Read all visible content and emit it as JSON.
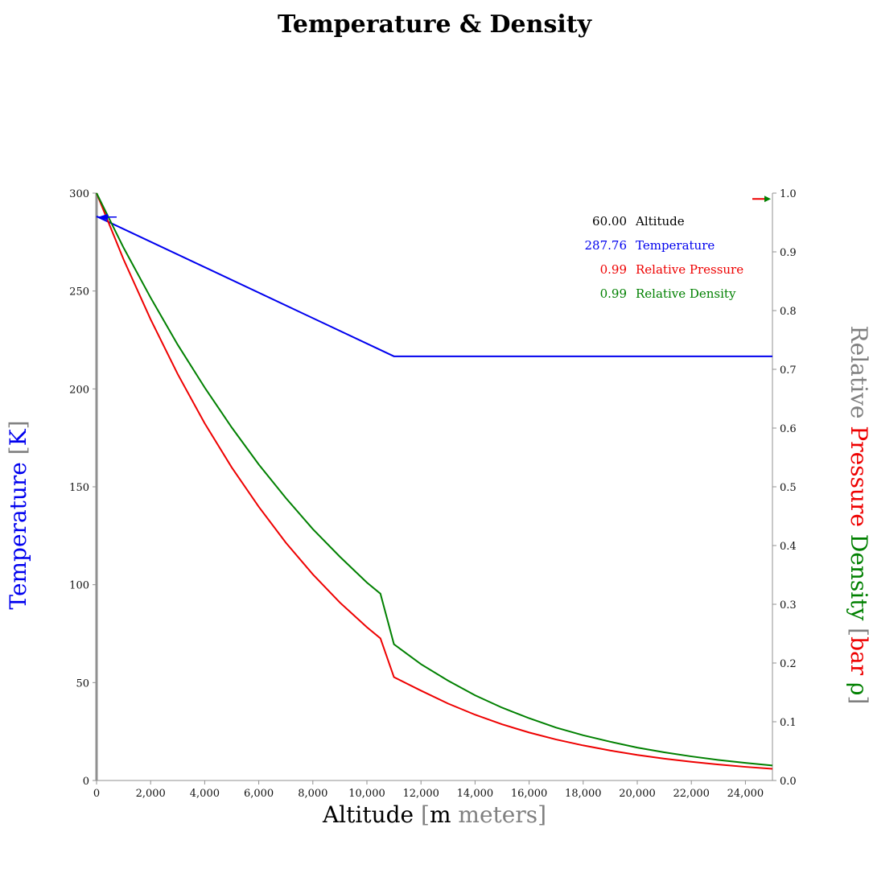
{
  "colors": {
    "temperature": "#0000ee",
    "pressure": "#ee0000",
    "density": "#008000",
    "muted": "#808080",
    "text": "#000000"
  },
  "readout": {
    "altitude": {
      "value": "60.00",
      "label": "Altitude"
    },
    "temperature": {
      "value": "287.76",
      "label": "Temperature"
    },
    "pressure": {
      "value": "0.99",
      "label": "Relative Pressure"
    },
    "density": {
      "value": "0.99",
      "label": "Relative Density"
    }
  },
  "axis_titles": {
    "x": {
      "name": "Altitude",
      "open": "[",
      "unit": "m",
      "unit_name": "meters",
      "close": "]"
    },
    "y_left": {
      "name": "Temperature",
      "open": "[",
      "unit": "K",
      "close": "]"
    },
    "y_right": {
      "relative": "Relative",
      "pressure": "Pressure",
      "density": "Density",
      "open": "[",
      "unit_pressure": "bar",
      "unit_density": "ρ",
      "close": "]"
    }
  },
  "chart_data": {
    "type": "line",
    "title": "Temperature & Density",
    "xlim": [
      0,
      25000
    ],
    "ylim_left": [
      0,
      300
    ],
    "ylim_right": [
      0,
      1.0
    ],
    "x_ticks": [
      0,
      2000,
      4000,
      6000,
      8000,
      10000,
      12000,
      14000,
      16000,
      18000,
      20000,
      22000,
      24000
    ],
    "x_tick_labels": [
      "0",
      "2,000",
      "4,000",
      "6,000",
      "8,000",
      "10,000",
      "12,000",
      "14,000",
      "16,000",
      "18,000",
      "20,000",
      "22,000",
      "24,000"
    ],
    "y_left_ticks": [
      0,
      50,
      100,
      150,
      200,
      250,
      300
    ],
    "y_left_tick_labels": [
      "0",
      "50",
      "100",
      "150",
      "200",
      "250",
      "300"
    ],
    "y_right_ticks": [
      0,
      0.1,
      0.2,
      0.3,
      0.4,
      0.5,
      0.6,
      0.7,
      0.8,
      0.9,
      1.0
    ],
    "y_right_tick_labels": [
      "0.0",
      "0.1",
      "0.2",
      "0.3",
      "0.4",
      "0.5",
      "0.6",
      "0.7",
      "0.8",
      "0.9",
      "1.0"
    ],
    "grid": false,
    "cursor_altitude": 60,
    "series": [
      {
        "key": "temperature",
        "axis": "left",
        "x": [
          0,
          11000,
          25000
        ],
        "y": [
          288.15,
          216.65,
          216.65
        ]
      },
      {
        "key": "pressure",
        "axis": "right",
        "x": [
          0,
          1000,
          2000,
          3000,
          4000,
          5000,
          6000,
          7000,
          8000,
          9000,
          10000,
          10500,
          11000,
          12000,
          13000,
          14000,
          15000,
          16000,
          17000,
          18000,
          19000,
          20000,
          21000,
          22000,
          23000,
          24000,
          25000
        ],
        "y": [
          1.0,
          0.887,
          0.785,
          0.692,
          0.608,
          0.533,
          0.466,
          0.405,
          0.351,
          0.303,
          0.261,
          0.242,
          0.176,
          0.153,
          0.131,
          0.112,
          0.0956,
          0.0817,
          0.0698,
          0.0597,
          0.051,
          0.0435,
          0.0372,
          0.0318,
          0.0272,
          0.0232,
          0.0198
        ]
      },
      {
        "key": "density",
        "axis": "right",
        "x": [
          0,
          1000,
          2000,
          3000,
          4000,
          5000,
          6000,
          7000,
          8000,
          9000,
          10000,
          10500,
          11000,
          12000,
          13000,
          14000,
          15000,
          16000,
          17000,
          18000,
          19000,
          20000,
          21000,
          22000,
          23000,
          24000,
          25000
        ],
        "y": [
          1.0,
          0.907,
          0.822,
          0.742,
          0.669,
          0.601,
          0.538,
          0.481,
          0.428,
          0.381,
          0.337,
          0.318,
          0.232,
          0.198,
          0.17,
          0.145,
          0.124,
          0.106,
          0.09,
          0.077,
          0.066,
          0.056,
          0.048,
          0.041,
          0.035,
          0.03,
          0.0255
        ]
      }
    ]
  }
}
